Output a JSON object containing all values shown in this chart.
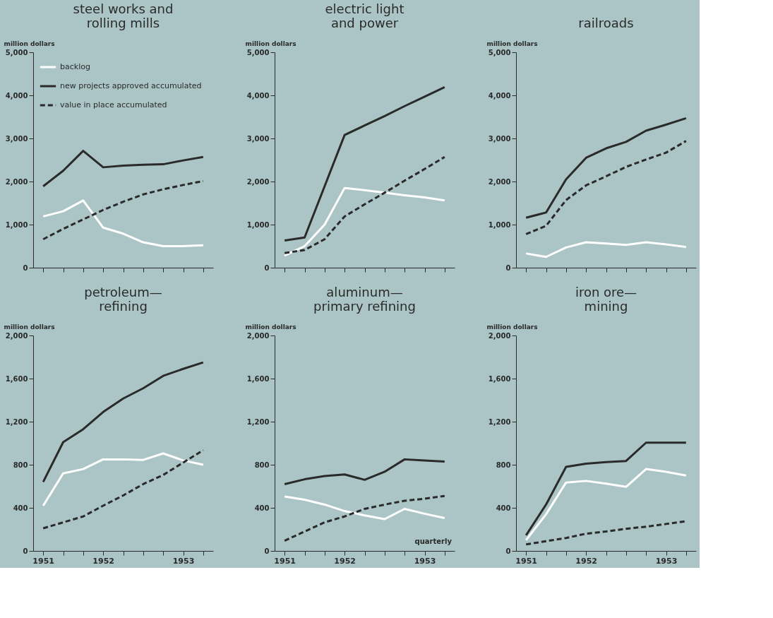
{
  "chart_data": [
    {
      "type": "line",
      "title": "steel works and\nrolling mills",
      "ylabel": "million dollars",
      "categories": [
        null,
        null,
        null,
        null,
        null,
        null,
        null,
        null,
        null
      ],
      "ylim": [
        0,
        5000
      ],
      "yticks": [
        {
          "value": 0,
          "label": "0"
        },
        {
          "value": 1000,
          "label": "1,000"
        },
        {
          "value": 2000,
          "label": "2,000"
        },
        {
          "value": 3000,
          "label": "3,000"
        },
        {
          "value": 4000,
          "label": "4,000"
        },
        {
          "value": 5000,
          "label": "5,000"
        }
      ],
      "tick_labels": "y",
      "grid": false,
      "legend": "top left",
      "series": [
        {
          "name": "backlog",
          "color": "#ffffff",
          "line_style": "solid",
          "values": [
            1190,
            1310,
            1560,
            930,
            790,
            590,
            500,
            500,
            520
          ]
        },
        {
          "name": "new projects approved accumulated",
          "color": "#2a2a2a",
          "line_style": "solid",
          "values": [
            1890,
            2250,
            2710,
            2330,
            2370,
            2390,
            2400,
            2490,
            2570
          ]
        },
        {
          "name": "value in place accumulated",
          "color": "#2a2a2a",
          "line_style": "dashed",
          "values": [
            660,
            900,
            1120,
            1340,
            1530,
            1700,
            1820,
            1920,
            2010
          ]
        }
      ]
    },
    {
      "type": "line",
      "title": "electric light\nand power",
      "ylabel": "million dollars",
      "categories": [
        null,
        null,
        null,
        null,
        null,
        null,
        null,
        null,
        null
      ],
      "ylim": [
        0,
        5000
      ],
      "yticks": [
        {
          "value": 0,
          "label": "0"
        },
        {
          "value": 1000,
          "label": "1,000"
        },
        {
          "value": 2000,
          "label": "2,000"
        },
        {
          "value": 3000,
          "label": "3,000"
        },
        {
          "value": 4000,
          "label": "4,000"
        },
        {
          "value": 5000,
          "label": "5,000"
        }
      ],
      "tick_labels": "y",
      "grid": false,
      "series": [
        {
          "color": "#ffffff",
          "line_style": "solid",
          "values": [
            280,
            500,
            1000,
            1850,
            1800,
            1740,
            1680,
            1630,
            1560
          ]
        },
        {
          "color": "#2a2a2a",
          "line_style": "solid",
          "values": [
            630,
            700,
            1890,
            3080,
            3300,
            3520,
            3750,
            3970,
            4190
          ]
        },
        {
          "color": "#2a2a2a",
          "line_style": "dashed",
          "values": [
            340,
            410,
            660,
            1190,
            1470,
            1740,
            2020,
            2290,
            2570
          ]
        }
      ]
    },
    {
      "type": "line",
      "title": "railroads",
      "ylabel": "million dollars",
      "categories": [
        null,
        null,
        null,
        null,
        null,
        null,
        null,
        null,
        null
      ],
      "ylim": [
        0,
        5000
      ],
      "yticks": [
        {
          "value": 0,
          "label": "0"
        },
        {
          "value": 1000,
          "label": "1,000"
        },
        {
          "value": 2000,
          "label": "2,000"
        },
        {
          "value": 3000,
          "label": "3,000"
        },
        {
          "value": 4000,
          "label": "4,000"
        },
        {
          "value": 5000,
          "label": "5,000"
        }
      ],
      "tick_labels": "y",
      "grid": false,
      "series": [
        {
          "color": "#ffffff",
          "line_style": "solid",
          "values": [
            330,
            250,
            470,
            590,
            560,
            530,
            590,
            540,
            480
          ]
        },
        {
          "color": "#2a2a2a",
          "line_style": "solid",
          "values": [
            1160,
            1280,
            2050,
            2550,
            2770,
            2920,
            3180,
            3320,
            3470
          ]
        },
        {
          "color": "#2a2a2a",
          "line_style": "dashed",
          "values": [
            780,
            970,
            1570,
            1910,
            2120,
            2340,
            2510,
            2670,
            2940
          ]
        }
      ]
    },
    {
      "type": "line",
      "title": "petroleum—\nrefining",
      "ylabel": "million dollars",
      "categories": [
        "1951",
        null,
        null,
        "1952",
        null,
        null,
        null,
        "1953",
        null
      ],
      "ylim": [
        0,
        2000
      ],
      "yticks": [
        {
          "value": 0,
          "label": "0"
        },
        {
          "value": 400,
          "label": "400"
        },
        {
          "value": 800,
          "label": "800"
        },
        {
          "value": 1200,
          "label": "1,200"
        },
        {
          "value": 1600,
          "label": "1,600"
        },
        {
          "value": 2000,
          "label": "2,000"
        }
      ],
      "grid": false,
      "series": [
        {
          "color": "#ffffff",
          "line_style": "solid",
          "values": [
            420,
            720,
            760,
            850,
            850,
            845,
            905,
            840,
            800
          ]
        },
        {
          "color": "#2a2a2a",
          "line_style": "solid",
          "values": [
            640,
            1010,
            1130,
            1290,
            1415,
            1510,
            1625,
            1690,
            1750
          ]
        },
        {
          "color": "#2a2a2a",
          "line_style": "dashed",
          "values": [
            210,
            265,
            320,
            420,
            515,
            620,
            705,
            820,
            935
          ]
        }
      ]
    },
    {
      "type": "line",
      "title": "aluminum—\nprimary refining",
      "ylabel": "million dollars",
      "categories": [
        "1951",
        null,
        null,
        "1952",
        null,
        null,
        null,
        "1953",
        null
      ],
      "ylim": [
        0,
        2000
      ],
      "yticks": [
        {
          "value": 0,
          "label": "0"
        },
        {
          "value": 400,
          "label": "400"
        },
        {
          "value": 800,
          "label": "800"
        },
        {
          "value": 1200,
          "label": "1,200"
        },
        {
          "value": 1600,
          "label": "1,600"
        },
        {
          "value": 2000,
          "label": "2,000"
        }
      ],
      "grid": false,
      "annotations": [
        "quarterly"
      ],
      "series": [
        {
          "color": "#ffffff",
          "line_style": "solid",
          "values": [
            505,
            475,
            430,
            370,
            330,
            295,
            390,
            345,
            305
          ]
        },
        {
          "color": "#2a2a2a",
          "line_style": "solid",
          "values": [
            620,
            665,
            695,
            710,
            660,
            735,
            850,
            840,
            830
          ]
        },
        {
          "color": "#2a2a2a",
          "line_style": "dashed",
          "values": [
            95,
            180,
            265,
            320,
            390,
            430,
            465,
            485,
            510
          ]
        }
      ]
    },
    {
      "type": "line",
      "title": "iron ore—\nmining",
      "ylabel": "million dollars",
      "categories": [
        "1951",
        null,
        null,
        "1952",
        null,
        null,
        null,
        "1953",
        null
      ],
      "ylim": [
        0,
        2000
      ],
      "yticks": [
        {
          "value": 0,
          "label": "0"
        },
        {
          "value": 400,
          "label": "400"
        },
        {
          "value": 800,
          "label": "800"
        },
        {
          "value": 1200,
          "label": "1,200"
        },
        {
          "value": 1600,
          "label": "1,600"
        },
        {
          "value": 2000,
          "label": "2,000"
        }
      ],
      "grid": false,
      "series": [
        {
          "color": "#ffffff",
          "line_style": "solid",
          "values": [
            100,
            340,
            635,
            650,
            625,
            595,
            760,
            735,
            700
          ]
        },
        {
          "color": "#2a2a2a",
          "line_style": "solid",
          "values": [
            145,
            430,
            780,
            810,
            825,
            835,
            1005,
            1005,
            1005
          ]
        },
        {
          "color": "#2a2a2a",
          "line_style": "dashed",
          "values": [
            60,
            90,
            120,
            160,
            180,
            205,
            225,
            250,
            275
          ]
        }
      ]
    }
  ]
}
